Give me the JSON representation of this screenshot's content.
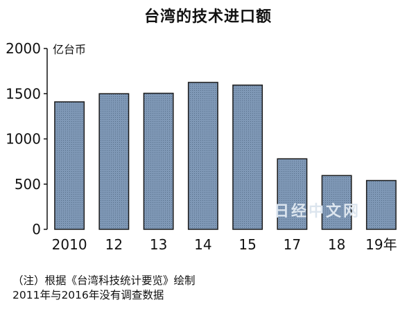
{
  "chart_data": {
    "type": "bar",
    "title": "台湾的技术进口额",
    "ylabel": "亿台币",
    "xlabel": "",
    "categories": [
      "2010",
      "12",
      "13",
      "14",
      "15",
      "17",
      "18",
      "19年"
    ],
    "values": [
      1410,
      1500,
      1505,
      1625,
      1595,
      780,
      595,
      540
    ],
    "ylim": [
      0,
      2000
    ],
    "yticks": [
      0,
      500,
      1000,
      1500,
      2000
    ],
    "grid": false,
    "bar_color": "#7f98b6",
    "bar_edge_color": "#1a1a1a"
  },
  "notes": {
    "line1": "（注）根据《台湾科技统计要览》绘制",
    "line2": "2011年与2016年没有调查数据"
  },
  "watermark": "日经中文网"
}
